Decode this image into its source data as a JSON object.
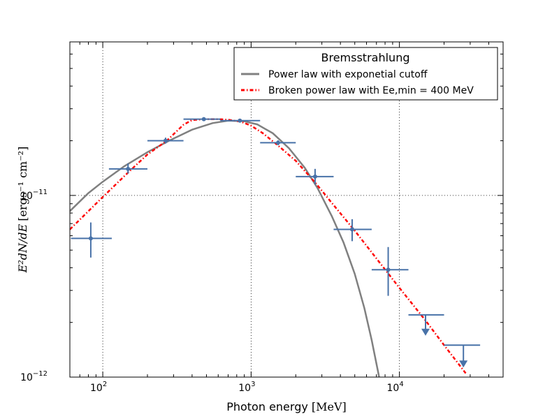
{
  "chart_data": {
    "type": "scatter",
    "xscale": "log",
    "yscale": "log",
    "xlim": [
      60,
      50000
    ],
    "ylim": [
      1e-12,
      7e-11
    ],
    "xlabel": "Photon energy [MeV]",
    "xlabel_parts": {
      "text": "Photon energy ",
      "unit": "[MeV]"
    },
    "ylabel": "E²dN/dE [ergs⁻¹ cm⁻²]",
    "ylabel_parts": {
      "math": "E²dN/dE",
      "unit": "[ergs⁻¹ cm⁻²]"
    },
    "grid": true,
    "x_ticks": [
      {
        "value": 100,
        "base": "10",
        "exp": "2"
      },
      {
        "value": 1000,
        "base": "10",
        "exp": "3"
      },
      {
        "value": 10000,
        "base": "10",
        "exp": "4"
      }
    ],
    "y_ticks": [
      {
        "value": 1e-12,
        "base": "10",
        "exp": "−12"
      },
      {
        "value": 1e-11,
        "base": "10",
        "exp": "−11"
      }
    ],
    "legend": {
      "title": "Bremsstrahlung",
      "location": "top-right",
      "entries": [
        {
          "label": "Power law with exponetial cutoff",
          "style": "solid",
          "color": "#808080"
        },
        {
          "label": "Broken power law with Ee,min = 400 MeV",
          "style": "dashdot",
          "color": "#ff0000"
        }
      ]
    },
    "series": [
      {
        "name": "Data points",
        "kind": "errorbar",
        "color": "#4872a8",
        "points": [
          {
            "x": 83,
            "y": 5.8e-12,
            "xlo": 61,
            "xhi": 115,
            "ylo": 4.55e-12,
            "yhi": 7.1e-12,
            "upper_limit": false
          },
          {
            "x": 148,
            "y": 1.4e-11,
            "xlo": 110,
            "xhi": 200,
            "ylo": 1.32e-11,
            "yhi": 1.5e-11,
            "upper_limit": false
          },
          {
            "x": 265,
            "y": 2e-11,
            "xlo": 200,
            "xhi": 350,
            "ylo": 1.93e-11,
            "yhi": 2.08e-11,
            "upper_limit": false
          },
          {
            "x": 480,
            "y": 2.63e-11,
            "xlo": 350,
            "xhi": 620,
            "ylo": 2.58e-11,
            "yhi": 2.68e-11,
            "upper_limit": false
          },
          {
            "x": 840,
            "y": 2.58e-11,
            "xlo": 620,
            "xhi": 1150,
            "ylo": 2.52e-11,
            "yhi": 2.64e-11,
            "upper_limit": false
          },
          {
            "x": 1520,
            "y": 1.95e-11,
            "xlo": 1150,
            "xhi": 2000,
            "ylo": 1.89e-11,
            "yhi": 2.01e-11,
            "upper_limit": false
          },
          {
            "x": 2700,
            "y": 1.27e-11,
            "xlo": 2000,
            "xhi": 3600,
            "ylo": 1.15e-11,
            "yhi": 1.4e-11,
            "upper_limit": false
          },
          {
            "x": 4800,
            "y": 6.5e-12,
            "xlo": 3600,
            "xhi": 6500,
            "ylo": 5.6e-12,
            "yhi": 7.4e-12,
            "upper_limit": false
          },
          {
            "x": 8400,
            "y": 3.9e-12,
            "xlo": 6500,
            "xhi": 11500,
            "ylo": 2.8e-12,
            "yhi": 5.2e-12,
            "upper_limit": false
          },
          {
            "x": 15000,
            "y": 2.2e-12,
            "xlo": 11500,
            "xhi": 20000,
            "ylo": 1.72e-12,
            "yhi": 2.2e-12,
            "upper_limit": true
          },
          {
            "x": 27000,
            "y": 1.5e-12,
            "xlo": 20000,
            "xhi": 35000,
            "ylo": 1.15e-12,
            "yhi": 1.5e-12,
            "upper_limit": true
          }
        ]
      },
      {
        "name": "Power law with exponetial cutoff",
        "kind": "line",
        "style": "solid",
        "color": "#808080",
        "x": [
          60,
          80,
          100,
          140,
          200,
          280,
          400,
          550,
          700,
          900,
          1100,
          1400,
          1800,
          2300,
          2800,
          3500,
          4200,
          5000,
          5800,
          6500,
          7300
        ],
        "y": [
          8.2e-12,
          1.03e-11,
          1.19e-11,
          1.45e-11,
          1.73e-11,
          2e-11,
          2.3e-11,
          2.5e-11,
          2.58e-11,
          2.56e-11,
          2.46e-11,
          2.2e-11,
          1.82e-11,
          1.42e-11,
          1.1e-11,
          7.7e-12,
          5.5e-12,
          3.7e-12,
          2.4e-12,
          1.6e-12,
          1e-12
        ]
      },
      {
        "name": "Broken power law with Ee,min = 400 MeV",
        "kind": "line",
        "style": "dashdot",
        "color": "#ff0000",
        "x": [
          60,
          100,
          150,
          200,
          270,
          350,
          400,
          500,
          600,
          700,
          850,
          1000,
          1200,
          1500,
          2000,
          2700,
          3500,
          5000,
          7000,
          10000,
          15000,
          20000,
          28000
        ],
        "y": [
          6.5e-12,
          9.8e-12,
          1.35e-11,
          1.68e-11,
          2e-11,
          2.45e-11,
          2.6e-11,
          2.63e-11,
          2.63e-11,
          2.61e-11,
          2.55e-11,
          2.42e-11,
          2.2e-11,
          1.9e-11,
          1.55e-11,
          1.18e-11,
          9.1e-12,
          6.4e-12,
          4.5e-12,
          3.1e-12,
          2.05e-12,
          1.5e-12,
          1.05e-12
        ]
      }
    ]
  }
}
